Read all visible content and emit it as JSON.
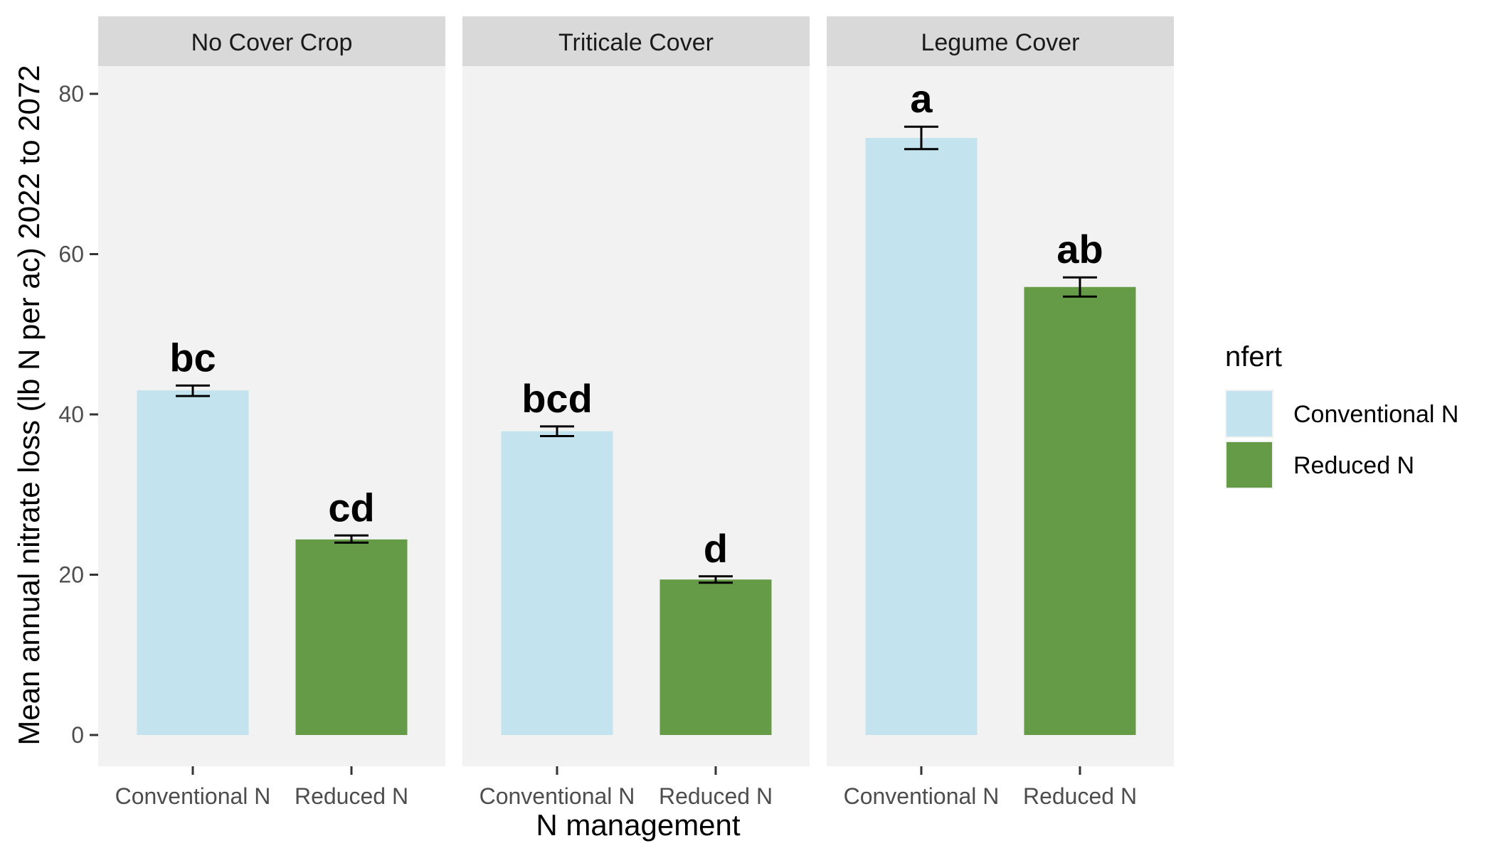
{
  "chart_data": {
    "type": "bar",
    "ylabel": "Mean annual nitrate loss (lb N per ac) 2022 to 2072",
    "xlabel": "N management",
    "ylim": [
      0,
      88
    ],
    "yticks": [
      0,
      20,
      40,
      60,
      80
    ],
    "ytick_labels": [
      "0",
      "20",
      "40",
      "60",
      "80"
    ],
    "grid": false,
    "categories": [
      "Conventional N",
      "Reduced N"
    ],
    "facets": [
      {
        "name": "No Cover Crop",
        "bars": [
          {
            "category": "Conventional N",
            "value": 43.0,
            "error_low": 42.3,
            "error_high": 43.6,
            "label": "bc"
          },
          {
            "category": "Reduced N",
            "value": 24.4,
            "error_low": 24.0,
            "error_high": 24.9,
            "label": "cd"
          }
        ]
      },
      {
        "name": "Triticale Cover",
        "bars": [
          {
            "category": "Conventional N",
            "value": 37.9,
            "error_low": 37.3,
            "error_high": 38.5,
            "label": "bcd"
          },
          {
            "category": "Reduced N",
            "value": 19.4,
            "error_low": 19.0,
            "error_high": 19.8,
            "label": "d"
          }
        ]
      },
      {
        "name": "Legume Cover",
        "bars": [
          {
            "category": "Conventional N",
            "value": 74.5,
            "error_low": 73.1,
            "error_high": 75.9,
            "label": "a"
          },
          {
            "category": "Reduced N",
            "value": 55.9,
            "error_low": 54.7,
            "error_high": 57.1,
            "label": "ab"
          }
        ]
      }
    ],
    "legend": {
      "title": "nfert",
      "position": "right",
      "entries": [
        {
          "name": "Conventional N",
          "color": "#c3e4ee"
        },
        {
          "name": "Reduced N",
          "color": "#659a47"
        }
      ]
    }
  },
  "colors": {
    "panel_bg": "#f2f2f2",
    "strip_bg": "#d9d9d9",
    "Conventional N": "#c3e4ee",
    "Reduced N": "#659a47"
  }
}
